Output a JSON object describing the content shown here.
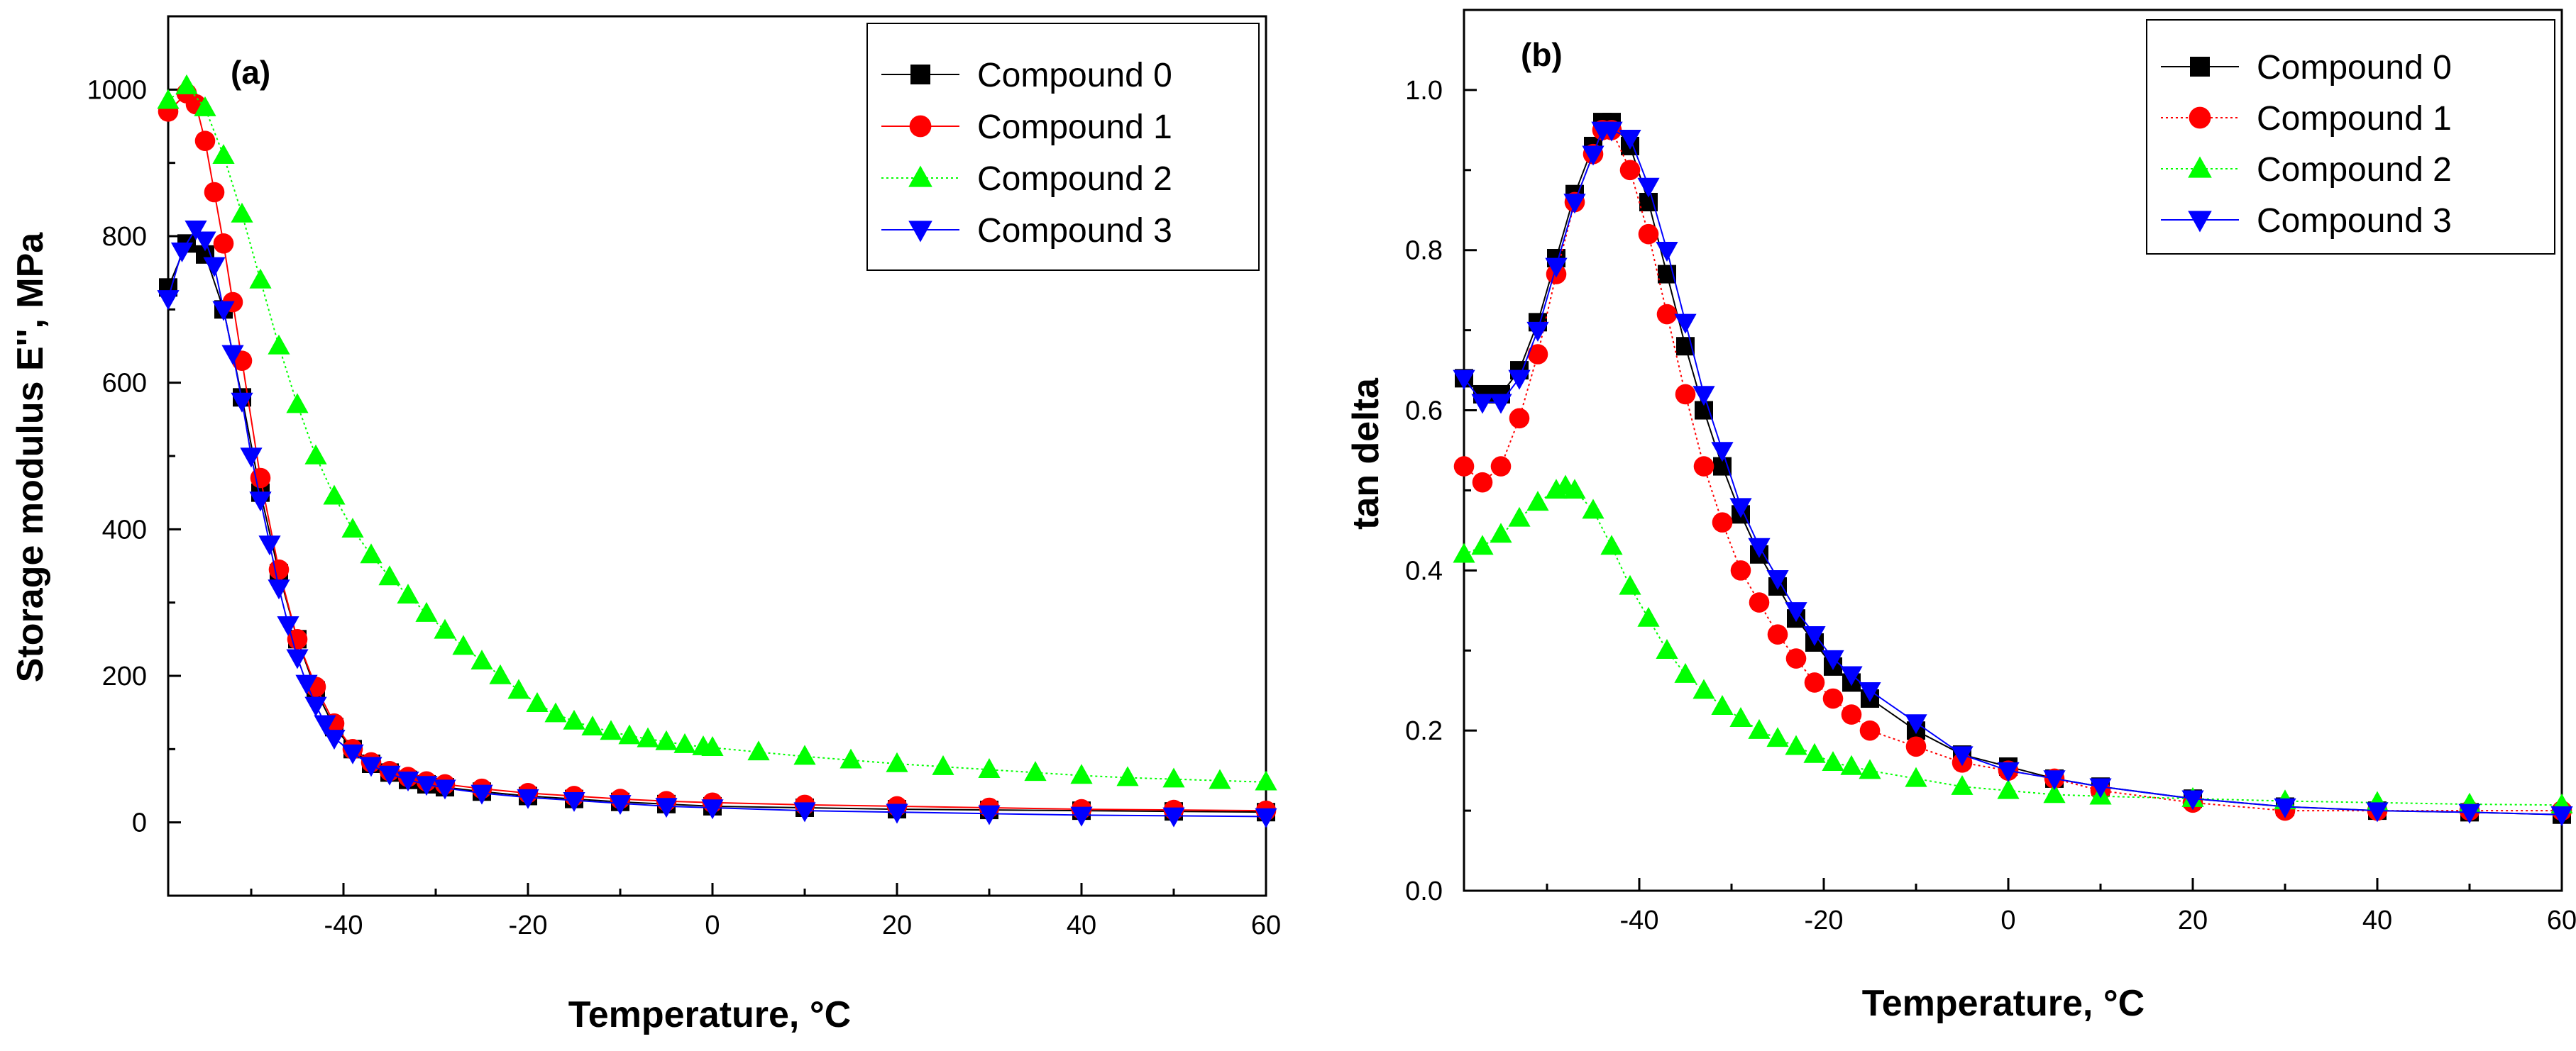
{
  "colors": {
    "axis": "#000000",
    "background": "#ffffff",
    "legend_border": "#000000"
  },
  "chart_data": [
    {
      "type": "scatter",
      "panel_label": "(a)",
      "xlabel_main": "Temperature, ",
      "xlabel_unit": "°C",
      "ylabel": "Storage modulus E'', MPa",
      "xlim": [
        -59,
        60
      ],
      "ylim": [
        -100,
        1100
      ],
      "xticks": [
        -40,
        -20,
        0,
        20,
        40,
        60
      ],
      "yticks": [
        0,
        200,
        400,
        600,
        800,
        1000
      ],
      "legend": [
        "Compound 0",
        "Compound 1",
        "Compound 2",
        "Compound 3"
      ],
      "series": [
        {
          "name": "Compound 0",
          "color": "#000000",
          "marker": "square",
          "line_style": "solid",
          "x": [
            -59,
            -57,
            -55,
            -53,
            -51,
            -49,
            -47,
            -45,
            -43,
            -41,
            -39,
            -37,
            -35,
            -33,
            -31,
            -29,
            -25,
            -20,
            -15,
            -10,
            -5,
            0,
            10,
            20,
            30,
            40,
            50,
            60
          ],
          "y": [
            730,
            790,
            775,
            700,
            580,
            450,
            340,
            250,
            180,
            130,
            100,
            80,
            68,
            58,
            52,
            48,
            42,
            36,
            32,
            28,
            25,
            22,
            20,
            18,
            17,
            16,
            15,
            14
          ]
        },
        {
          "name": "Compound 1",
          "color": "#ff0000",
          "marker": "circle",
          "line_style": "solid",
          "x": [
            -59,
            -57,
            -56,
            -55,
            -54,
            -53,
            -52,
            -51,
            -49,
            -47,
            -45,
            -43,
            -41,
            -39,
            -37,
            -35,
            -33,
            -31,
            -29,
            -25,
            -20,
            -15,
            -10,
            -5,
            0,
            10,
            20,
            30,
            40,
            50,
            60
          ],
          "y": [
            970,
            995,
            980,
            930,
            860,
            790,
            710,
            630,
            470,
            345,
            250,
            185,
            135,
            100,
            82,
            70,
            62,
            56,
            52,
            46,
            40,
            36,
            32,
            29,
            27,
            24,
            22,
            20,
            18,
            17,
            16
          ]
        },
        {
          "name": "Compound 2",
          "color": "#00ff00",
          "marker": "triangle-up",
          "line_style": "dotted",
          "x": [
            -59,
            -57,
            -55,
            -53,
            -51,
            -49,
            -47,
            -45,
            -43,
            -41,
            -39,
            -37,
            -35,
            -33,
            -31,
            -29,
            -27,
            -25,
            -23,
            -21,
            -19,
            -17,
            -15,
            -13,
            -11,
            -9,
            -7,
            -5,
            -3,
            -1,
            0,
            5,
            10,
            15,
            20,
            25,
            30,
            35,
            40,
            45,
            50,
            55,
            60
          ],
          "y": [
            985,
            1005,
            975,
            910,
            830,
            740,
            650,
            570,
            500,
            445,
            400,
            365,
            335,
            310,
            285,
            262,
            240,
            220,
            200,
            180,
            162,
            148,
            138,
            130,
            124,
            118,
            114,
            110,
            106,
            103,
            102,
            96,
            90,
            85,
            80,
            76,
            72,
            68,
            64,
            61,
            59,
            57,
            55
          ]
        },
        {
          "name": "Compound 3",
          "color": "#0000ff",
          "marker": "triangle-down",
          "line_style": "solid",
          "x": [
            -59,
            -57.5,
            -56,
            -55,
            -54,
            -53,
            -52,
            -51,
            -50,
            -49,
            -48,
            -47,
            -46,
            -45,
            -44,
            -43,
            -42,
            -41,
            -39,
            -37,
            -35,
            -33,
            -31,
            -29,
            -25,
            -20,
            -15,
            -10,
            -5,
            0,
            10,
            20,
            30,
            40,
            50,
            60
          ],
          "y": [
            715,
            780,
            810,
            795,
            760,
            700,
            640,
            575,
            500,
            440,
            380,
            320,
            270,
            225,
            190,
            160,
            135,
            115,
            95,
            78,
            66,
            58,
            52,
            47,
            40,
            34,
            30,
            26,
            22,
            20,
            16,
            14,
            12,
            10,
            9,
            8
          ]
        }
      ]
    },
    {
      "type": "scatter",
      "panel_label": "(b)",
      "xlabel_main": "Temperature, ",
      "xlabel_unit": "°C",
      "ylabel": "tan delta",
      "xlim": [
        -59,
        60
      ],
      "ylim": [
        0.0,
        1.1
      ],
      "xticks": [
        -40,
        -20,
        0,
        20,
        40,
        60
      ],
      "yticks": [
        0.0,
        0.2,
        0.4,
        0.6,
        0.8,
        1.0
      ],
      "ytick_labels": [
        "0.0",
        "0.2",
        "0.4",
        "0.6",
        "0.8",
        "1.0"
      ],
      "legend": [
        "Compound 0",
        "Compound 1",
        "Compound 2",
        "Compound 3"
      ],
      "series": [
        {
          "name": "Compound 0",
          "color": "#000000",
          "marker": "square",
          "line_style": "solid",
          "x": [
            -59,
            -57,
            -55,
            -53,
            -51,
            -49,
            -47,
            -45,
            -44,
            -43,
            -41,
            -39,
            -37,
            -35,
            -33,
            -31,
            -29,
            -27,
            -25,
            -23,
            -21,
            -19,
            -17,
            -15,
            -10,
            -5,
            0,
            5,
            10,
            20,
            30,
            40,
            50,
            60
          ],
          "y": [
            0.64,
            0.62,
            0.62,
            0.65,
            0.71,
            0.79,
            0.87,
            0.93,
            0.96,
            0.96,
            0.93,
            0.86,
            0.77,
            0.68,
            0.6,
            0.53,
            0.47,
            0.42,
            0.38,
            0.34,
            0.31,
            0.28,
            0.26,
            0.24,
            0.2,
            0.17,
            0.155,
            0.14,
            0.13,
            0.115,
            0.105,
            0.1,
            0.098,
            0.095
          ]
        },
        {
          "name": "Compound 1",
          "color": "#ff0000",
          "marker": "circle",
          "line_style": "dotted",
          "x": [
            -59,
            -57,
            -55,
            -53,
            -51,
            -49,
            -47,
            -45,
            -44,
            -43,
            -41,
            -39,
            -37,
            -35,
            -33,
            -31,
            -29,
            -27,
            -25,
            -23,
            -21,
            -19,
            -17,
            -15,
            -10,
            -5,
            0,
            5,
            10,
            20,
            30,
            40,
            50,
            60
          ],
          "y": [
            0.53,
            0.51,
            0.53,
            0.59,
            0.67,
            0.77,
            0.86,
            0.92,
            0.95,
            0.95,
            0.9,
            0.82,
            0.72,
            0.62,
            0.53,
            0.46,
            0.4,
            0.36,
            0.32,
            0.29,
            0.26,
            0.24,
            0.22,
            0.2,
            0.18,
            0.16,
            0.15,
            0.14,
            0.125,
            0.11,
            0.1,
            0.1,
            0.1,
            0.1
          ]
        },
        {
          "name": "Compound 2",
          "color": "#00ff00",
          "marker": "triangle-up",
          "line_style": "dotted",
          "x": [
            -59,
            -57,
            -55,
            -53,
            -51,
            -49,
            -48,
            -47,
            -45,
            -43,
            -41,
            -39,
            -37,
            -35,
            -33,
            -31,
            -29,
            -27,
            -25,
            -23,
            -21,
            -19,
            -17,
            -15,
            -10,
            -5,
            0,
            5,
            10,
            20,
            30,
            40,
            50,
            60
          ],
          "y": [
            0.42,
            0.43,
            0.445,
            0.465,
            0.485,
            0.5,
            0.505,
            0.5,
            0.475,
            0.43,
            0.38,
            0.34,
            0.3,
            0.27,
            0.25,
            0.23,
            0.215,
            0.2,
            0.19,
            0.18,
            0.17,
            0.16,
            0.155,
            0.15,
            0.14,
            0.13,
            0.125,
            0.12,
            0.118,
            0.115,
            0.112,
            0.11,
            0.108,
            0.107
          ]
        },
        {
          "name": "Compound 3",
          "color": "#0000ff",
          "marker": "triangle-down",
          "line_style": "solid",
          "x": [
            -59,
            -57,
            -55,
            -53,
            -51,
            -49,
            -47,
            -45,
            -44,
            -43,
            -41,
            -39,
            -37,
            -35,
            -33,
            -31,
            -29,
            -27,
            -25,
            -23,
            -21,
            -19,
            -17,
            -15,
            -10,
            -5,
            0,
            5,
            10,
            20,
            30,
            40,
            50,
            60
          ],
          "y": [
            0.64,
            0.61,
            0.61,
            0.64,
            0.7,
            0.78,
            0.86,
            0.92,
            0.95,
            0.95,
            0.94,
            0.88,
            0.8,
            0.71,
            0.62,
            0.55,
            0.48,
            0.43,
            0.39,
            0.35,
            0.32,
            0.29,
            0.27,
            0.25,
            0.21,
            0.17,
            0.15,
            0.14,
            0.13,
            0.115,
            0.105,
            0.1,
            0.098,
            0.095
          ]
        }
      ]
    }
  ]
}
